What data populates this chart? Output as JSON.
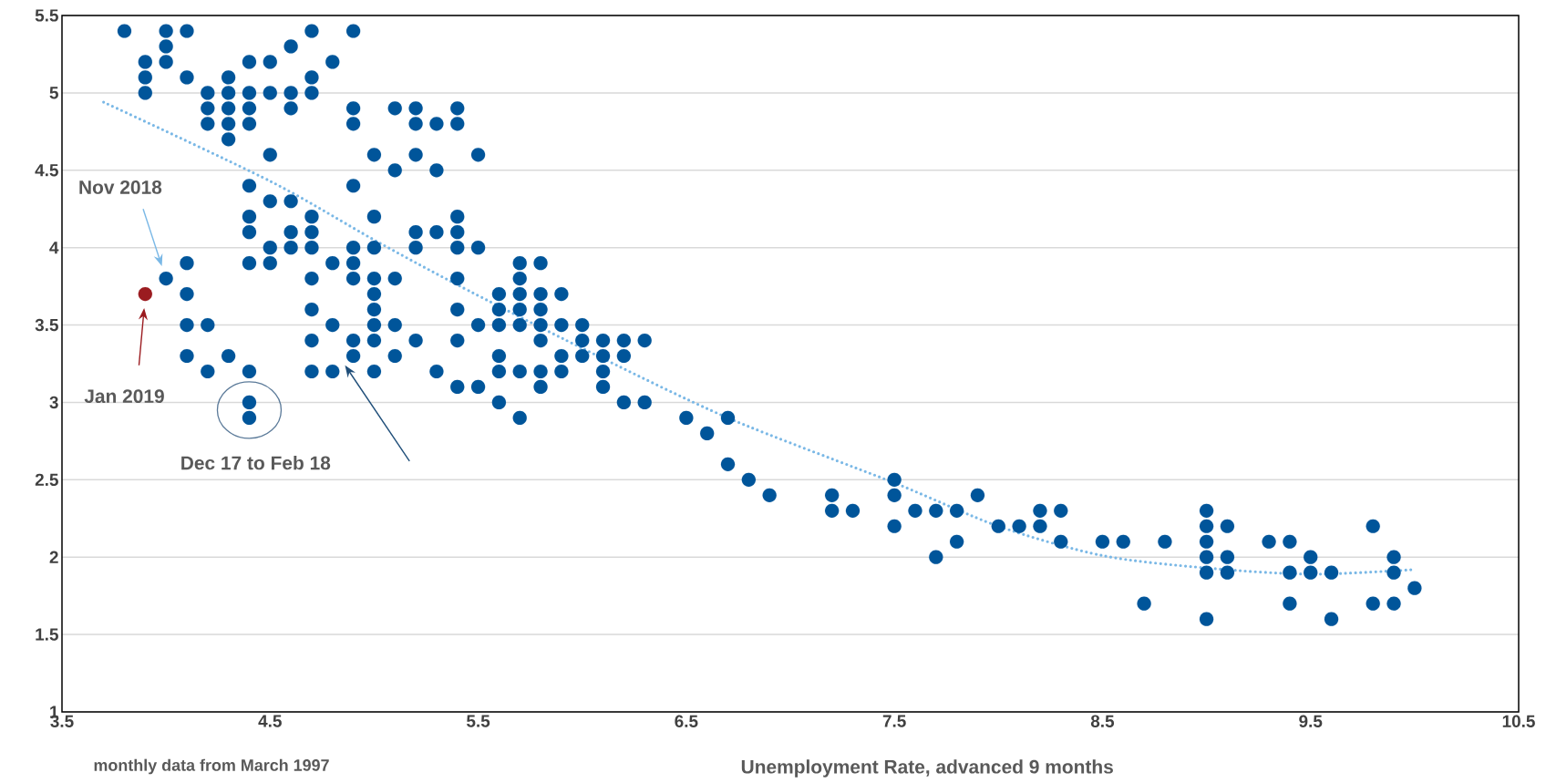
{
  "chart_data": {
    "type": "scatter",
    "xlabel": "Unemployment Rate, advanced 9 months",
    "xlim": [
      3.5,
      10.5
    ],
    "ylim": [
      1,
      5.5
    ],
    "xticks": [
      3.5,
      4.5,
      5.5,
      6.5,
      7.5,
      8.5,
      9.5,
      10.5
    ],
    "yticks": [
      1,
      1.5,
      2,
      2.5,
      3,
      3.5,
      4,
      4.5,
      5,
      5.5
    ],
    "grid": "y",
    "marker": "circle",
    "series": [
      {
        "color": "#00559a",
        "x": [
          3.8,
          3.9,
          3.9,
          3.9,
          4.0,
          4.0,
          4.0,
          4.0,
          4.1,
          4.1,
          4.1,
          4.1,
          4.1,
          4.1,
          4.2,
          4.2,
          4.2,
          4.2,
          4.2,
          4.3,
          4.3,
          4.3,
          4.3,
          4.3,
          4.3,
          4.4,
          4.4,
          4.4,
          4.4,
          4.4,
          4.4,
          4.4,
          4.4,
          4.4,
          4.4,
          4.4,
          4.5,
          4.5,
          4.5,
          4.5,
          4.5,
          4.5,
          4.6,
          4.6,
          4.6,
          4.6,
          4.6,
          4.6,
          4.7,
          4.7,
          4.7,
          4.7,
          4.7,
          4.7,
          4.7,
          4.7,
          4.7,
          4.7,
          4.8,
          4.8,
          4.8,
          4.8,
          4.9,
          4.9,
          4.9,
          4.9,
          4.9,
          4.9,
          4.9,
          4.9,
          4.9,
          5.0,
          5.0,
          5.0,
          5.0,
          5.0,
          5.0,
          5.0,
          5.0,
          5.0,
          5.1,
          5.1,
          5.1,
          5.1,
          5.1,
          5.2,
          5.2,
          5.2,
          5.2,
          5.2,
          5.2,
          5.3,
          5.3,
          5.3,
          5.3,
          5.4,
          5.4,
          5.4,
          5.4,
          5.4,
          5.4,
          5.4,
          5.4,
          5.4,
          5.5,
          5.5,
          5.5,
          5.5,
          5.6,
          5.6,
          5.6,
          5.6,
          5.6,
          5.6,
          5.7,
          5.7,
          5.7,
          5.7,
          5.7,
          5.7,
          5.7,
          5.8,
          5.8,
          5.8,
          5.8,
          5.8,
          5.8,
          5.8,
          5.9,
          5.9,
          5.9,
          5.9,
          6.0,
          6.0,
          6.0,
          6.1,
          6.1,
          6.1,
          6.1,
          6.2,
          6.2,
          6.2,
          6.3,
          6.3,
          6.5,
          6.6,
          6.7,
          6.7,
          6.8,
          6.9,
          7.2,
          7.2,
          7.3,
          7.5,
          7.5,
          7.5,
          7.6,
          7.7,
          7.7,
          7.8,
          7.8,
          7.9,
          8.0,
          8.1,
          8.2,
          8.2,
          8.3,
          8.3,
          8.5,
          8.6,
          8.7,
          8.8,
          9.0,
          9.0,
          9.0,
          9.0,
          9.0,
          9.0,
          9.1,
          9.1,
          9.1,
          9.3,
          9.4,
          9.4,
          9.4,
          9.5,
          9.5,
          9.6,
          9.6,
          9.8,
          9.8,
          9.9,
          9.9,
          9.9,
          10.0
        ],
        "values": [
          5.4,
          5.2,
          5.1,
          5.0,
          5.4,
          5.3,
          5.2,
          3.8,
          5.4,
          5.1,
          3.9,
          3.7,
          3.5,
          3.3,
          5.0,
          4.9,
          4.8,
          3.5,
          3.2,
          5.1,
          5.0,
          4.9,
          4.8,
          4.7,
          3.3,
          5.2,
          5.0,
          4.9,
          4.8,
          4.4,
          4.2,
          4.1,
          3.9,
          3.2,
          3.0,
          2.9,
          5.2,
          5.0,
          4.6,
          4.3,
          4.0,
          3.9,
          5.3,
          5.0,
          4.9,
          4.3,
          4.1,
          4.0,
          5.4,
          5.1,
          5.0,
          4.2,
          4.1,
          4.0,
          3.8,
          3.6,
          3.4,
          3.2,
          5.2,
          3.9,
          3.5,
          3.2,
          5.4,
          4.9,
          4.8,
          4.4,
          4.0,
          3.9,
          3.8,
          3.4,
          3.3,
          4.6,
          4.2,
          4.0,
          3.8,
          3.7,
          3.6,
          3.5,
          3.4,
          3.2,
          4.9,
          4.5,
          3.8,
          3.5,
          3.3,
          4.9,
          4.8,
          4.6,
          4.1,
          4.0,
          3.4,
          4.8,
          4.5,
          4.1,
          3.2,
          4.9,
          4.8,
          4.2,
          4.1,
          4.0,
          3.8,
          3.6,
          3.4,
          3.1,
          4.6,
          4.0,
          3.5,
          3.1,
          3.7,
          3.6,
          3.5,
          3.3,
          3.2,
          3.0,
          3.9,
          3.8,
          3.7,
          3.6,
          3.5,
          3.2,
          2.9,
          3.9,
          3.7,
          3.6,
          3.5,
          3.4,
          3.2,
          3.1,
          3.7,
          3.5,
          3.3,
          3.2,
          3.5,
          3.4,
          3.3,
          3.4,
          3.3,
          3.2,
          3.1,
          3.4,
          3.3,
          3.0,
          3.4,
          3.0,
          2.9,
          2.8,
          2.9,
          2.6,
          2.5,
          2.4,
          2.4,
          2.3,
          2.3,
          2.5,
          2.4,
          2.2,
          2.3,
          2.3,
          2.0,
          2.3,
          2.1,
          2.4,
          2.2,
          2.2,
          2.3,
          2.2,
          2.3,
          2.1,
          2.1,
          2.1,
          1.7,
          2.1,
          2.3,
          2.2,
          2.1,
          2.0,
          1.9,
          1.6,
          2.2,
          2.0,
          1.9,
          2.1,
          2.1,
          1.9,
          1.7,
          2.0,
          1.9,
          1.9,
          1.6,
          2.2,
          1.7,
          2.0,
          1.9,
          1.7,
          1.8
        ]
      },
      {
        "color": "#9b1c20",
        "x": [
          3.9
        ],
        "values": [
          3.7
        ]
      },
      {
        "type": "line",
        "color": "#7ab8e6",
        "marker": "none",
        "line_style": "dotted",
        "x": [
          3.7,
          4.5,
          5.0,
          5.4,
          6.0,
          6.7,
          7.5,
          8.0,
          8.5,
          9.0,
          9.5,
          10.0
        ],
        "values": [
          4.94,
          4.43,
          4.05,
          3.76,
          3.35,
          2.9,
          2.48,
          2.2,
          2.01,
          1.93,
          1.89,
          1.92
        ]
      }
    ],
    "annotations": [
      "Nov 2018",
      "Jan 2019",
      {
        "text": "Dec 17 to Feb 18",
        "x": 4.4,
        "y": 2.95
      },
      "monthly data from March 1997"
    ]
  }
}
